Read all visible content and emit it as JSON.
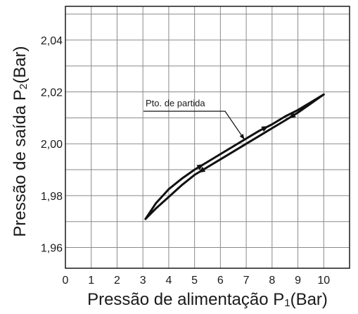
{
  "chart_data": {
    "type": "line",
    "title": "",
    "xlabel": "Pressão de alimentação P",
    "xlabel_sub": "1",
    "xlabel_unit": "(Bar)",
    "ylabel": "Pressão de saída P",
    "ylabel_sub": "2",
    "ylabel_unit": "(Bar)",
    "xlim": [
      0,
      11
    ],
    "ylim": [
      1.952,
      2.053
    ],
    "x_ticks": [
      0,
      1,
      2,
      3,
      4,
      5,
      6,
      7,
      8,
      9,
      10
    ],
    "x_tick_labels": [
      "0",
      "1",
      "2",
      "3",
      "4",
      "5",
      "6",
      "7",
      "8",
      "9",
      "10"
    ],
    "y_ticks": [
      1.96,
      1.98,
      2.0,
      2.02,
      2.04
    ],
    "y_tick_labels": [
      "1,96",
      "1,98",
      "2,00",
      "2,02",
      "2,04"
    ],
    "grid": true,
    "legend": "none",
    "series": [
      {
        "x": [
          3.1,
          3.5,
          4.0,
          4.5,
          5.0,
          5.5,
          6.0,
          6.5,
          7.0,
          7.5,
          8.0,
          8.5,
          9.0,
          9.5,
          10.0
        ],
        "y": [
          1.971,
          1.977,
          1.9825,
          1.9865,
          1.99,
          1.993,
          1.996,
          1.999,
          2.002,
          2.005,
          2.0075,
          2.0105,
          2.013,
          2.016,
          2.019
        ],
        "direction": "increasing"
      },
      {
        "x": [
          10.0,
          9.5,
          9.0,
          8.5,
          8.0,
          7.5,
          7.0,
          6.5,
          6.0,
          5.5,
          5.0,
          4.5,
          4.0,
          3.5,
          3.1
        ],
        "y": [
          2.019,
          2.0155,
          2.012,
          2.009,
          2.006,
          2.003,
          2.0,
          1.997,
          1.994,
          1.991,
          1.988,
          1.984,
          1.9795,
          1.975,
          1.971
        ],
        "direction": "decreasing"
      }
    ],
    "annotations": [
      {
        "text": "Pto. de partida",
        "points_to": [
          7.0,
          2.001
        ]
      }
    ]
  }
}
